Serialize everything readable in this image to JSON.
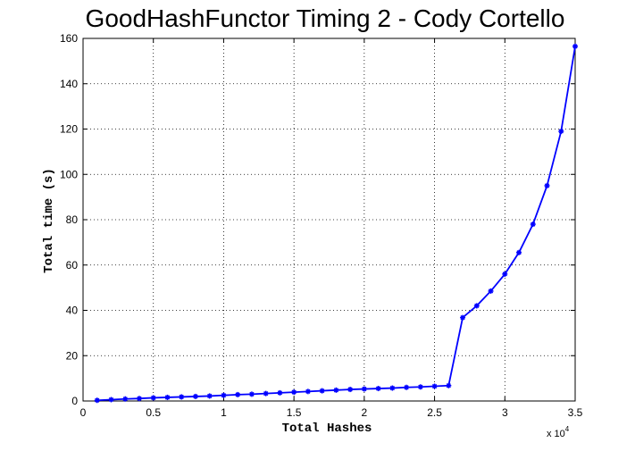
{
  "chart_data": {
    "type": "line",
    "title": "GoodHashFunctor Timing 2 - Cody Cortello",
    "xlabel": "Total Hashes",
    "ylabel": "Total time (s)",
    "x_multiplier_label": "x 10",
    "x_multiplier_exponent": "4",
    "xlim": [
      0,
      3.5
    ],
    "ylim": [
      0,
      160
    ],
    "xticks": [
      "0",
      "0.5",
      "1",
      "1.5",
      "2",
      "2.5",
      "3",
      "3.5"
    ],
    "yticks": [
      "0",
      "20",
      "40",
      "60",
      "80",
      "100",
      "120",
      "140",
      "160"
    ],
    "grid": true,
    "line_color": "#0000ff",
    "series": [
      {
        "x": [
          0.1,
          0.2,
          0.3,
          0.4,
          0.5,
          0.6,
          0.7,
          0.8,
          0.9,
          1.0,
          1.1,
          1.2,
          1.3,
          1.4,
          1.5,
          1.6,
          1.7,
          1.8,
          1.9,
          2.0,
          2.1,
          2.2,
          2.3,
          2.4,
          2.5,
          2.6,
          2.7,
          2.8,
          2.9,
          3.0,
          3.1,
          3.2,
          3.3,
          3.4,
          3.5
        ],
        "y": [
          0.3,
          0.6,
          0.9,
          1.1,
          1.4,
          1.6,
          1.8,
          2.0,
          2.2,
          2.5,
          2.8,
          3.0,
          3.3,
          3.6,
          3.9,
          4.2,
          4.5,
          4.8,
          5.1,
          5.3,
          5.5,
          5.7,
          6.0,
          6.2,
          6.5,
          6.8,
          36.8,
          42.0,
          48.5,
          56.0,
          65.5,
          78.0,
          95.0,
          119.0,
          156.5
        ]
      }
    ]
  }
}
